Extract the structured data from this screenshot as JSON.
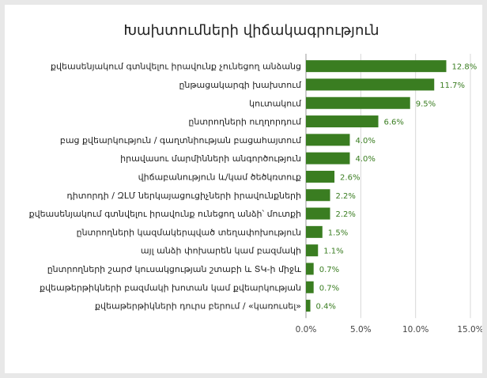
{
  "chart_data": {
    "type": "bar",
    "orientation": "horizontal",
    "title": "Խախտումների վիճակագրություն",
    "categories": [
      "քվեասենյակում գտնվելու իրավունք չունեցող անձանց",
      "ընթացակարգի խախտում",
      "կուտակում",
      "ընտրողների ուղղորդում",
      "բաց քվեարկություն / գաղտնիության բացահայտում",
      "իրավասու մարմինների անգործություն",
      "վիճաբանություն և/կամ ծեծկռտուք",
      "դիտորդի / ԶԼՄ ներկայացուցիչների իրավունքների",
      "քվեասենյակում գտնվելու իրավունք ունեցող անձի՝ մուտքի",
      "ընտրողների կազմակերպված տեղափոխություն",
      "այլ անձի փոխարեն կամ բազմակի",
      "ընտրողների շարժ կուսակցության շտաբի և ՏԿ-ի միջև",
      "քվեաթերթիկների բազմակի խոտան կամ քվեարկության",
      "քվեաթերթիկների դուրս բերում / «կառուսել»"
    ],
    "values": [
      12.8,
      11.7,
      9.5,
      6.6,
      4.0,
      4.0,
      2.6,
      2.2,
      2.2,
      1.5,
      1.1,
      0.7,
      0.7,
      0.4
    ],
    "value_labels": [
      "12.8%",
      "11.7%",
      "9.5%",
      "6.6%",
      "4.0%",
      "4.0%",
      "2.6%",
      "2.2%",
      "2.2%",
      "1.5%",
      "1.1%",
      "0.7%",
      "0.7%",
      "0.4%"
    ],
    "xlim": [
      0,
      15
    ],
    "xticks": [
      0,
      5,
      10,
      15
    ],
    "xtick_labels": [
      "0.0%",
      "5.0%",
      "10.0%",
      "15.0%"
    ],
    "grid": true,
    "legend": "none",
    "bar_color": "#3a7d21",
    "label_color": "#3a7d21"
  }
}
